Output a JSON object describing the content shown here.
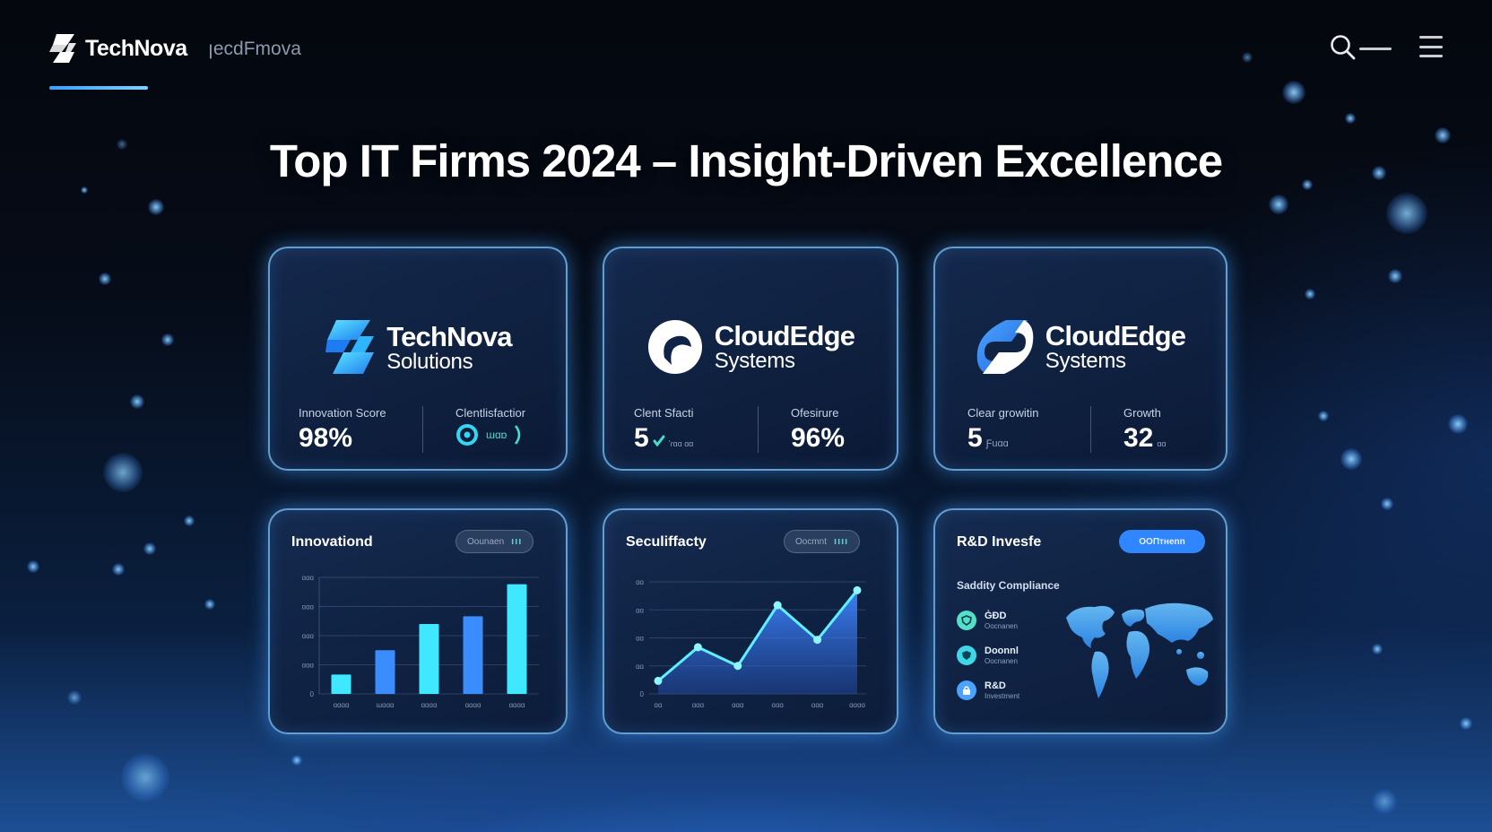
{
  "header": {
    "brand_name": "TechNova",
    "brand_sub": "ꞁecdFmova",
    "icons": [
      "brand-logo-icon",
      "search-icon",
      "hamburger-menu-icon"
    ]
  },
  "title": "Top IT Firms 2024 – Insight-Driven Excellence",
  "colors": {
    "accent": "#2f86ff",
    "bar": "#3fe8ff",
    "bar_alt": "#3a8cff",
    "teal": "#43e0c9"
  },
  "companies": [
    {
      "name": "TechNova",
      "sub": "Solutions",
      "logo_icon": "technova-logo-icon",
      "metrics": [
        {
          "label": "Innovation Score",
          "value": "98%"
        },
        {
          "label": "Clentlisfactior",
          "value": "",
          "extra": "ɯɑɒ"
        }
      ]
    },
    {
      "name": "CloudEdge",
      "sub": "Systems",
      "logo_icon": "cloudedge-logo-icon",
      "metrics": [
        {
          "label": "Clent Sfacti",
          "value": "5",
          "extra": "ʼɾɑɑ    ɑɑ"
        },
        {
          "label": "Ofesirure",
          "value": "96%"
        }
      ]
    },
    {
      "name": "CloudEdge",
      "sub": "Systems",
      "logo_icon": "cloudedge-s-logo-icon",
      "metrics": [
        {
          "label": "Clear growitin",
          "value": "5",
          "extra": "Ƒuɑɑ"
        },
        {
          "label": "Growth",
          "value": "32",
          "extra": "ɑɑ"
        }
      ]
    }
  ],
  "panels": {
    "innovation": {
      "title": "Innovationd",
      "pill_label": "Oounaen",
      "pill_bars": "ııı",
      "chart_data": {
        "type": "bar",
        "categories": [
          "ɑɑɑɑ",
          "ɯɑɑɑ",
          "ɑɑɑɑ",
          "ɑɑɑɑ",
          "ɑɑɑɑ"
        ],
        "values": [
          20,
          45,
          72,
          80,
          113
        ],
        "y_ticks": [
          "0",
          "ɑɑɑ",
          "ɑɑɑ",
          "ɑɑɑ",
          "ɑɑɑ"
        ],
        "ylim": [
          0,
          120
        ]
      }
    },
    "security": {
      "title": "Seculiffacty",
      "pill_label": "Oocmnt",
      "pill_bars": "ıııı",
      "chart_data": {
        "type": "area",
        "categories": [
          "ɑɑ",
          "ɑɑɑ",
          "ɑɑɑ",
          "ɑɑɑ",
          "ɑɑɑ",
          "ɑɑɑɑ"
        ],
        "values": [
          14,
          50,
          30,
          95,
          58,
          111
        ],
        "y_ticks": [
          "0",
          "ɑɑ",
          "ɑɑ",
          "ɑɑ",
          "ɑɑ"
        ],
        "ylim": [
          0,
          120
        ]
      }
    },
    "rd": {
      "title": "R&D Invesfe",
      "pill_label": "ООПтнenn",
      "subtitle": "Saddity Compliance",
      "items": [
        {
          "title": "ĠĐD",
          "sub": "Oocnanen",
          "icon": "shield-icon",
          "color": "#54e0c8"
        },
        {
          "title": "Doonnl",
          "sub": "Oocnanen",
          "icon": "shield-icon",
          "color": "#3fd6e6"
        },
        {
          "title": "R&D",
          "sub": "Investment",
          "icon": "lock-icon",
          "color": "#4aa3ff"
        }
      ],
      "map_icon": "world-map-icon"
    }
  }
}
